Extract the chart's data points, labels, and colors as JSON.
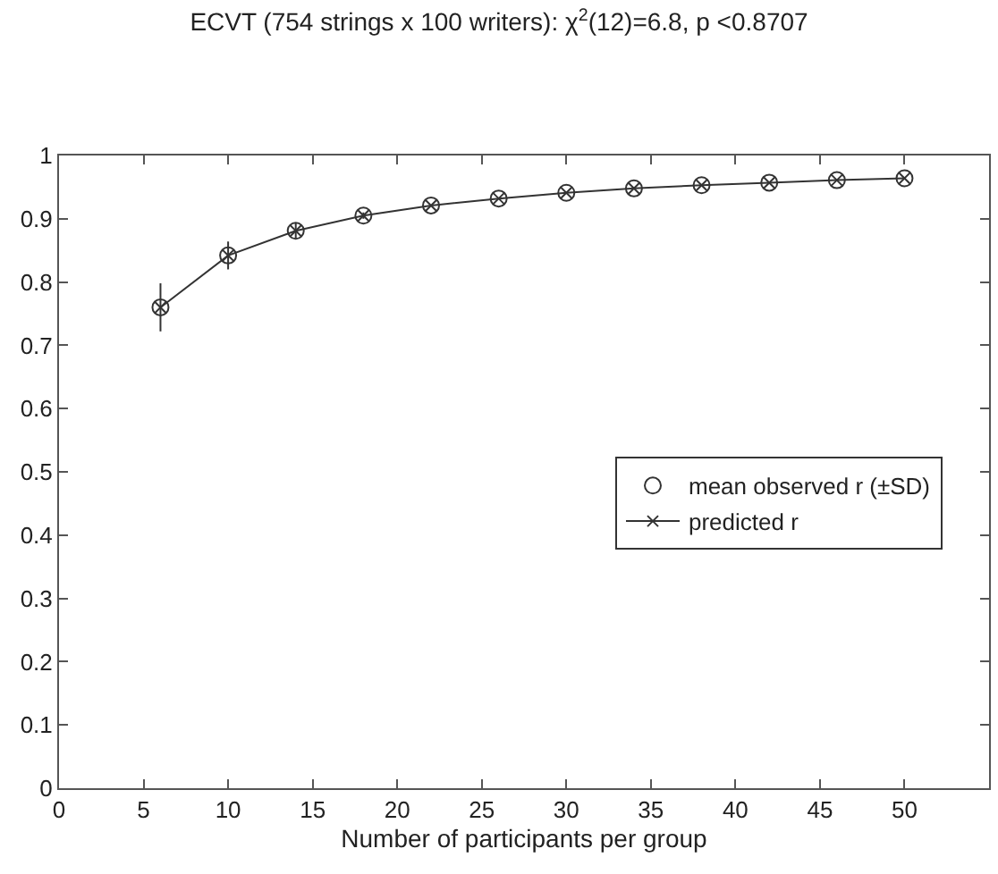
{
  "chart_data": {
    "type": "line",
    "title": "ECVT (754 strings x 100 writers): χ$^{2}$(12)=6.8, p <0.8707",
    "xlabel": "Number of participants per group",
    "x": [
      6,
      10,
      14,
      18,
      22,
      26,
      30,
      34,
      38,
      42,
      46,
      50
    ],
    "series": [
      {
        "name": "predicted r",
        "color": "#333333",
        "marker": "cross",
        "values": [
          0.76,
          0.842,
          0.881,
          0.905,
          0.921,
          0.932,
          0.941,
          0.948,
          0.953,
          0.957,
          0.961,
          0.964
        ]
      },
      {
        "name": "mean observed r (±SD)",
        "type": "scatter",
        "color": "#333333",
        "marker": "circle",
        "values": [
          0.76,
          0.842,
          0.881,
          0.905,
          0.921,
          0.932,
          0.941,
          0.948,
          0.953,
          0.957,
          0.961,
          0.964
        ],
        "errors": [
          0.038,
          0.022,
          0.012,
          0.005,
          null,
          null,
          null,
          null,
          null,
          null,
          null,
          null
        ]
      }
    ],
    "xlim": [
      0,
      55
    ],
    "xticks": [
      0,
      5,
      10,
      15,
      20,
      25,
      30,
      35,
      40,
      45,
      50
    ],
    "ylim": [
      0,
      1
    ],
    "yticks": [
      0,
      0.1,
      0.2,
      0.3,
      0.4,
      0.5,
      0.6,
      0.7,
      0.8,
      0.9,
      1
    ],
    "grid": false,
    "legend": "right",
    "line_style": "solid"
  }
}
